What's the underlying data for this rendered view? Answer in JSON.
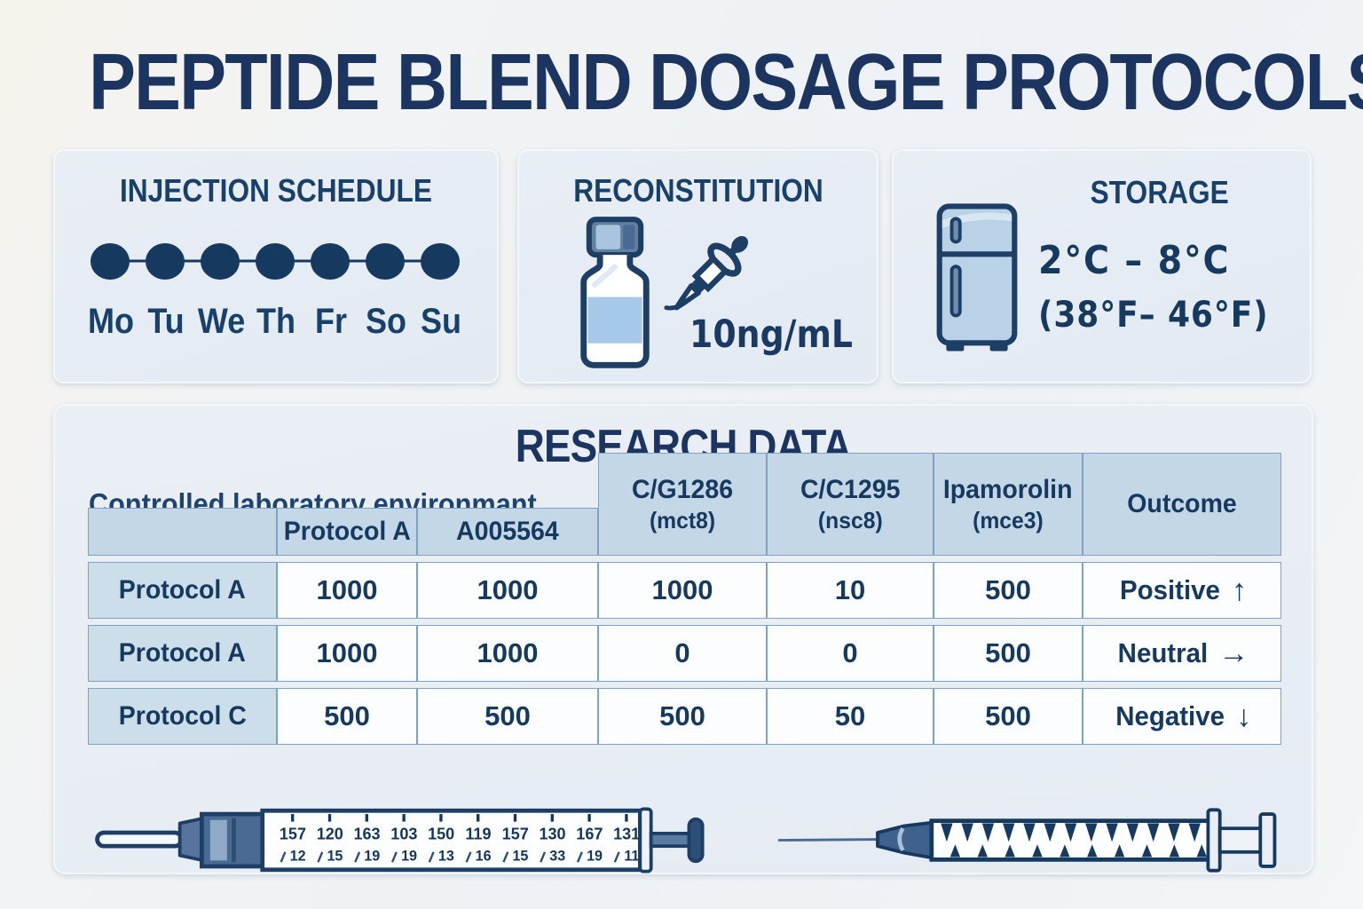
{
  "page": {
    "title": "PEPTIDE BLEND DOSAGE PROTOCOLS"
  },
  "injection_card": {
    "title": "INJECTION SCHEDULE",
    "days": [
      "Mo",
      "Tu",
      "We",
      "Th",
      "Fr",
      "So",
      "Su"
    ]
  },
  "reconstitution_card": {
    "title": "RECONSTITUTION",
    "concentration": "10ng/mL"
  },
  "storage_card": {
    "title": "STORAGE",
    "temp_celsius": "2°C – 8°C",
    "temp_fahrenheit": "(38°F– 46°F)"
  },
  "research": {
    "title": "RESEARCH DATA",
    "subtitle": "Controlled laboratory environmant",
    "table": {
      "headers": [
        {
          "line1": "",
          "line2": ""
        },
        {
          "line1": "Protocol A",
          "line2": ""
        },
        {
          "line1": "A005564",
          "line2": ""
        },
        {
          "line1": "C/G1286",
          "line2": "(mct8)"
        },
        {
          "line1": "C/C1295",
          "line2": "(nsc8)"
        },
        {
          "line1": "Ipamorolin",
          "line2": "(mce3)"
        },
        {
          "line1": "Outcome",
          "line2": ""
        }
      ],
      "rows": [
        {
          "label": "Protocol A",
          "values": [
            "1000",
            "1000",
            "1000",
            "10",
            "500"
          ],
          "outcome": "Positive",
          "arrow": "↑"
        },
        {
          "label": "Protocol A",
          "values": [
            "1000",
            "1000",
            "0",
            "0",
            "500"
          ],
          "outcome": "Neutral",
          "arrow": "→"
        },
        {
          "label": "Protocol C",
          "values": [
            "500",
            "500",
            "500",
            "50",
            "500"
          ],
          "outcome": "Negative",
          "arrow": "↓"
        }
      ]
    }
  },
  "syringe_left": {
    "scale_top": [
      "157",
      "120",
      "163",
      "103",
      "150",
      "119",
      "157",
      "130",
      "167",
      "131"
    ],
    "scale_bottom": [
      "12",
      "15",
      "19",
      "19",
      "13",
      "16",
      "15",
      "33",
      "19",
      "11"
    ]
  },
  "colors": {
    "navy": "#16395f",
    "card_bg": "#e7edf4",
    "table_header_bg": "#c3d7e7",
    "label_col_bg": "#cddeeb",
    "liquid_blue": "#a6c9e9"
  }
}
